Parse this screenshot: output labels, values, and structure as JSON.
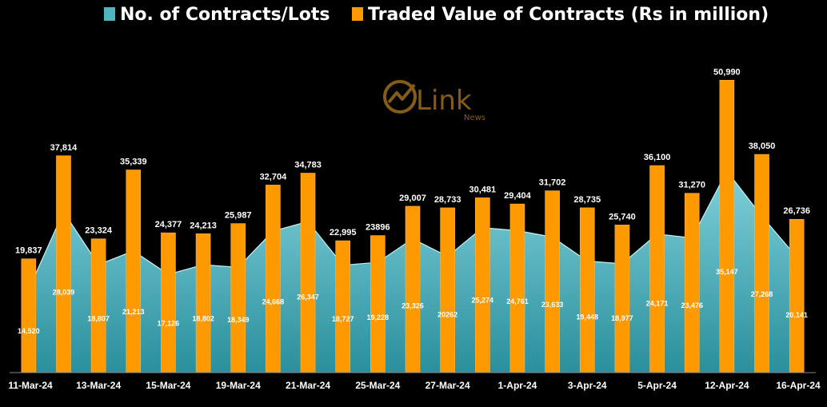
{
  "legend": [
    {
      "label": "No. of Contracts/Lots",
      "color": "#4fb3c0"
    },
    {
      "label": "Traded Value of Contracts (Rs in million)",
      "color": "#ff9900"
    }
  ],
  "logo": {
    "text": "Link",
    "subtext": "News"
  },
  "chart_data": {
    "type": "bar",
    "x_tick_labels": [
      "11-Mar-24",
      "13-Mar-24",
      "15-Mar-24",
      "19-Mar-24",
      "21-Mar-24",
      "25-Mar-24",
      "27-Mar-24",
      "1-Apr-24",
      "3-Apr-24",
      "5-Apr-24",
      "12-Apr-24",
      "16-Apr-24"
    ],
    "ylim": [
      0,
      58000
    ],
    "grid": false,
    "legend_position": "top",
    "series": [
      {
        "name": "No. of Contracts/Lots",
        "type": "area",
        "color": "#4fb3c0",
        "values": [
          14520,
          28039,
          18807,
          21213,
          17126,
          18802,
          18349,
          24668,
          26347,
          18727,
          19228,
          23326,
          20262,
          25274,
          24761,
          23633,
          19448,
          18977,
          24171,
          23476,
          35147,
          27268,
          20141
        ],
        "labels": [
          "14,520",
          "28,039",
          "18,807",
          "21,213",
          "17,126",
          "18,802",
          "18,349",
          "24,668",
          "26,347",
          "18,727",
          "19,228",
          "23,326",
          "20262",
          "25,274",
          "24,761",
          "23,633",
          "19,448",
          "18,977",
          "24,171",
          "23,476",
          "35,147",
          "27,268",
          "20,141"
        ]
      },
      {
        "name": "Traded Value of Contracts (Rs in million)",
        "type": "bar",
        "color": "#ff9900",
        "values": [
          19837,
          37814,
          23324,
          35339,
          24377,
          24213,
          25987,
          32704,
          34783,
          22995,
          23896,
          29007,
          28733,
          30481,
          29404,
          31702,
          28735,
          25740,
          36100,
          31270,
          50990,
          38050,
          26736
        ],
        "labels": [
          "19,837",
          "37,814",
          "23,324",
          "35,339",
          "24,377",
          "24,213",
          "25,987",
          "32,704",
          "34,783",
          "22,995",
          "23896",
          "29,007",
          "28,733",
          "30,481",
          "29,404",
          "31,702",
          "28,735",
          "25,740",
          "36,100",
          "31,270",
          "50,990",
          "38,050",
          "26,736"
        ]
      }
    ]
  }
}
